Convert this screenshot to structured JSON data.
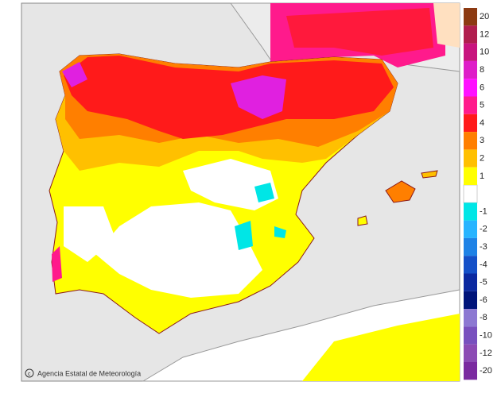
{
  "credit": "Agencia Estatal de Meteorología",
  "legend": {
    "items": [
      {
        "label": 20,
        "color": "#8c3a12"
      },
      {
        "label": 12,
        "color": "#b01e4e"
      },
      {
        "label": 10,
        "color": "#c8147e"
      },
      {
        "label": 8,
        "color": "#de1ec8"
      },
      {
        "label": 6,
        "color": "#ff10ff"
      },
      {
        "label": 5,
        "color": "#ff1a8c"
      },
      {
        "label": 4,
        "color": "#ff1a1a"
      },
      {
        "label": 3,
        "color": "#ff7f00"
      },
      {
        "label": 2,
        "color": "#ffc000"
      },
      {
        "label": 1,
        "color": "#ffff00"
      },
      {
        "label": -1,
        "color": "#00e6e6"
      },
      {
        "label": -2,
        "color": "#28b4ff"
      },
      {
        "label": -3,
        "color": "#1e82e6"
      },
      {
        "label": -4,
        "color": "#1450c8"
      },
      {
        "label": -5,
        "color": "#0a28a0"
      },
      {
        "label": -6,
        "color": "#00147a"
      },
      {
        "label": -8,
        "color": "#8c78d2"
      },
      {
        "label": -10,
        "color": "#7850be"
      },
      {
        "label": -12,
        "color": "#8c4bb4"
      },
      {
        "label": -20,
        "color": "#7a2aa0"
      }
    ]
  }
}
